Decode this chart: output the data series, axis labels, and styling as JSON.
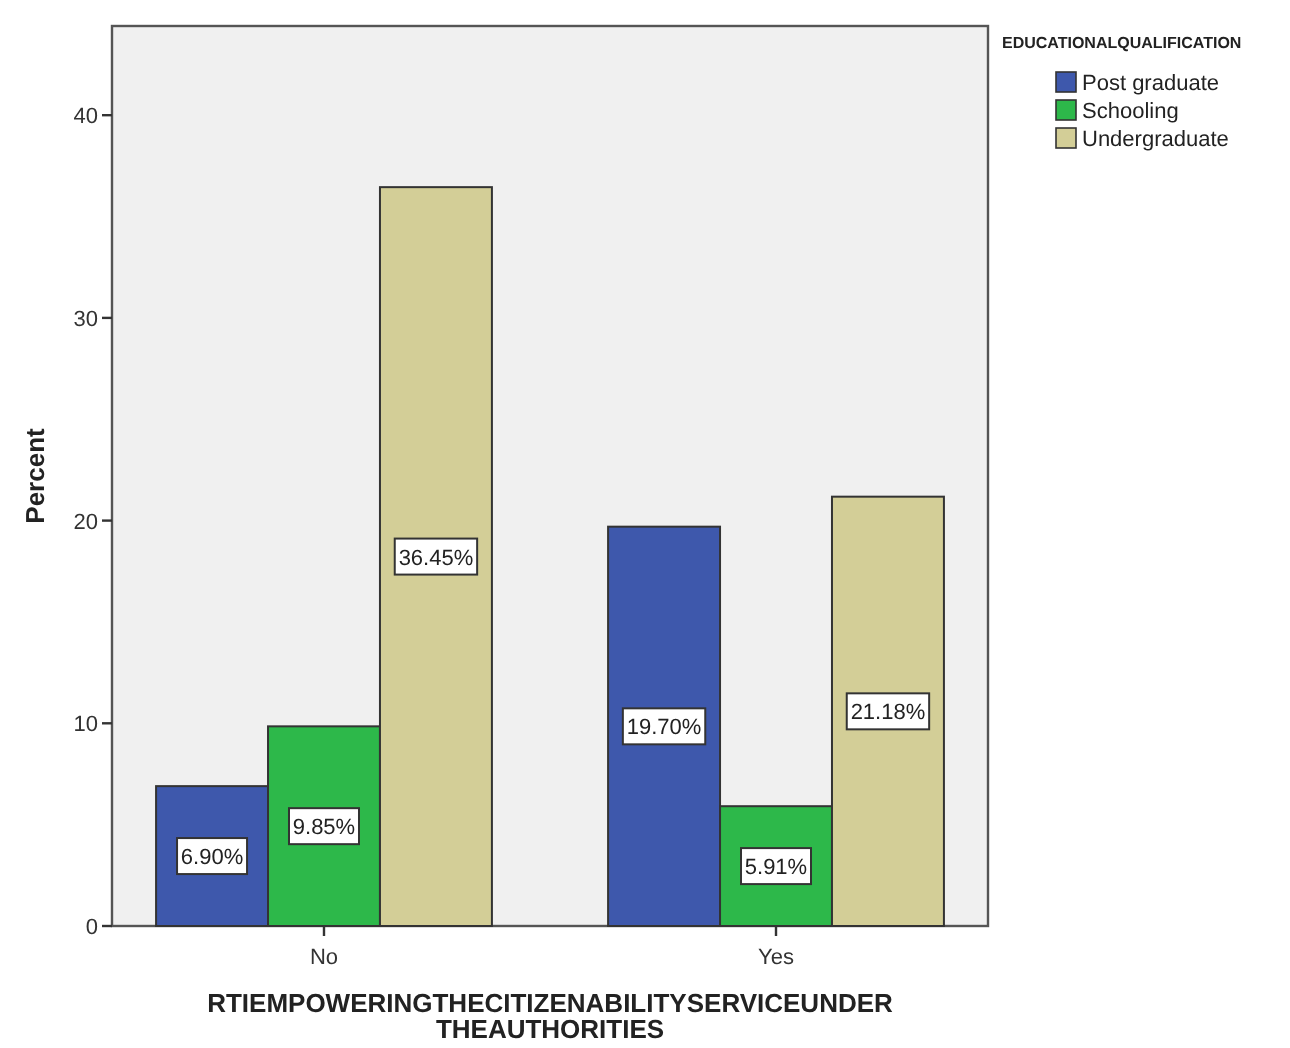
{
  "chart_data": {
    "type": "bar",
    "xlabel": "RTIEMPOWERINGTHECITIZENABILITYSERVICEUNDER THEAUTHORITIES",
    "ylabel": "Percent",
    "legend_title": "EDUCATIONALQUALIFICATION",
    "legend": "top right",
    "categories": [
      "No",
      "Yes"
    ],
    "series": [
      {
        "name": "Post graduate",
        "color": "#3e58ac",
        "values": [
          6.9,
          19.7
        ],
        "value_labels": [
          "6.90%",
          "19.70%"
        ]
      },
      {
        "name": "Schooling",
        "color": "#2db84a",
        "values": [
          9.85,
          5.91
        ],
        "value_labels": [
          "9.85%",
          "5.91%"
        ]
      },
      {
        "name": "Undergraduate",
        "color": "#d3ce97",
        "values": [
          36.45,
          21.18
        ],
        "value_labels": [
          "36.45%",
          "21.18%"
        ]
      }
    ],
    "ylim": [
      0,
      44.4
    ],
    "yticks": [
      0,
      10,
      20,
      30,
      40
    ]
  }
}
